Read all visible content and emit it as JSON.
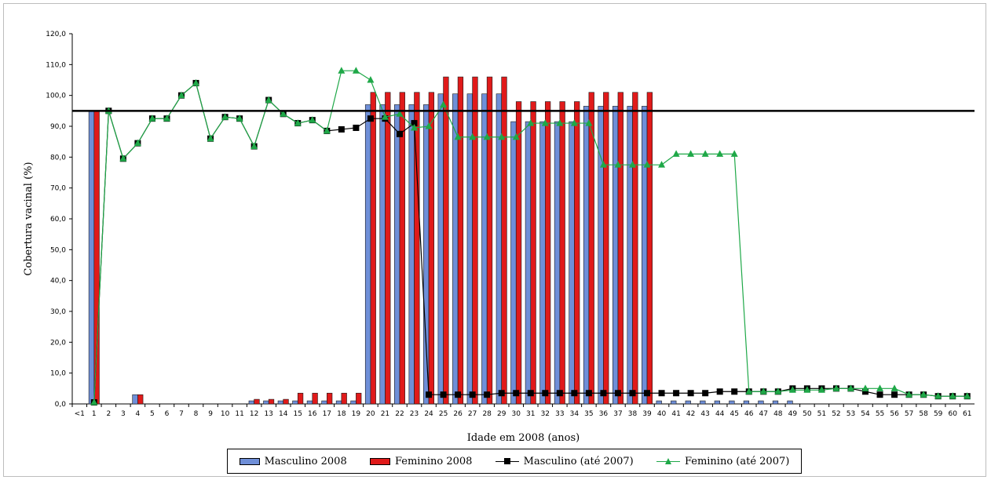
{
  "colors": {
    "masculino_bar": "#6f8fd8",
    "feminino_bar": "#e01a1a",
    "masculino_line": "#000000",
    "feminino_line": "#1fa848",
    "reference_line": "#000000"
  },
  "chart_data": {
    "type": "bar",
    "title": "",
    "xlabel": "Idade em 2008 (anos)",
    "ylabel": "Cobertura vacinal (%)",
    "ylim": [
      0,
      120
    ],
    "yticks": [
      "0,0",
      "10,0",
      "20,0",
      "30,0",
      "40,0",
      "50,0",
      "60,0",
      "70,0",
      "80,0",
      "90,0",
      "100,0",
      "110,0",
      "120,0"
    ],
    "grid": false,
    "legend_position": "bottom",
    "reference_line": 95,
    "categories": [
      "<1",
      "1",
      "2",
      "3",
      "4",
      "5",
      "6",
      "7",
      "8",
      "9",
      "10",
      "11",
      "12",
      "13",
      "14",
      "15",
      "16",
      "17",
      "18",
      "19",
      "20",
      "21",
      "22",
      "23",
      "24",
      "25",
      "26",
      "27",
      "28",
      "29",
      "30",
      "31",
      "32",
      "33",
      "34",
      "35",
      "36",
      "37",
      "38",
      "39",
      "40",
      "41",
      "42",
      "43",
      "44",
      "45",
      "46",
      "47",
      "48",
      "49",
      "50",
      "51",
      "52",
      "53",
      "54",
      "55",
      "56",
      "57",
      "58",
      "59",
      "60",
      "61"
    ],
    "series": [
      {
        "name": "Masculino 2008",
        "kind": "bar",
        "values": [
          0,
          95,
          0,
          0,
          3,
          0,
          0,
          0,
          0,
          0,
          0,
          0,
          1,
          1,
          1,
          1,
          1,
          1,
          1,
          1,
          97,
          97,
          97,
          97,
          97,
          100.5,
          100.5,
          100.5,
          100.5,
          100.5,
          91.5,
          91.5,
          91.5,
          91.5,
          91.5,
          96.5,
          96.5,
          96.5,
          96.5,
          96.5,
          1,
          1,
          1,
          1,
          1,
          1,
          1,
          1,
          1,
          1,
          0,
          0,
          0,
          0,
          0,
          0,
          0,
          0,
          0,
          0,
          0,
          0
        ]
      },
      {
        "name": "Feminino 2008",
        "kind": "bar",
        "values": [
          0,
          95,
          0,
          0,
          3,
          0,
          0,
          0,
          0,
          0,
          0,
          0,
          1.5,
          1.5,
          1.5,
          3.5,
          3.5,
          3.5,
          3.5,
          3.5,
          101,
          101,
          101,
          101,
          101,
          106,
          106,
          106,
          106,
          106,
          98,
          98,
          98,
          98,
          98,
          101,
          101,
          101,
          101,
          101,
          0,
          0,
          0,
          0,
          0,
          0,
          0,
          0,
          0,
          0,
          0,
          0,
          0,
          0,
          0,
          0,
          0,
          0,
          0,
          0,
          0,
          0
        ]
      },
      {
        "name": "Masculino (até 2007)",
        "kind": "line",
        "marker": "square",
        "values": [
          null,
          0.5,
          95,
          79.5,
          84.5,
          92.5,
          92.5,
          100,
          104,
          86,
          93,
          92.5,
          83.5,
          98.5,
          94,
          91,
          92,
          88.5,
          89,
          89.5,
          92.5,
          92.5,
          87.5,
          91,
          3,
          3,
          3,
          3,
          3,
          3.5,
          3.5,
          3.5,
          3.5,
          3.5,
          3.5,
          3.5,
          3.5,
          3.5,
          3.5,
          3.5,
          3.5,
          3.5,
          3.5,
          3.5,
          4,
          4,
          4,
          4,
          4,
          5,
          5,
          5,
          5,
          5,
          4,
          3,
          3,
          3,
          3,
          2.5,
          2.5,
          2.5
        ]
      },
      {
        "name": "Feminino (até 2007)",
        "kind": "line",
        "marker": "triangle",
        "values": [
          null,
          0.5,
          95,
          79.5,
          84.5,
          92.5,
          92.5,
          100,
          104,
          86,
          93,
          92.5,
          83.5,
          98.5,
          94,
          91,
          92,
          88.5,
          108,
          108,
          105,
          93,
          94,
          89.5,
          90,
          97,
          86.5,
          86.5,
          86.5,
          86.5,
          86.5,
          91,
          91,
          91,
          91,
          91,
          77.5,
          77.5,
          77.5,
          77.5,
          77.5,
          81,
          81,
          81,
          81,
          81,
          4,
          4,
          4,
          4.5,
          4.5,
          4.5,
          5,
          5,
          5,
          5,
          5,
          3,
          3,
          2.5,
          2.5,
          2.5
        ]
      }
    ]
  }
}
